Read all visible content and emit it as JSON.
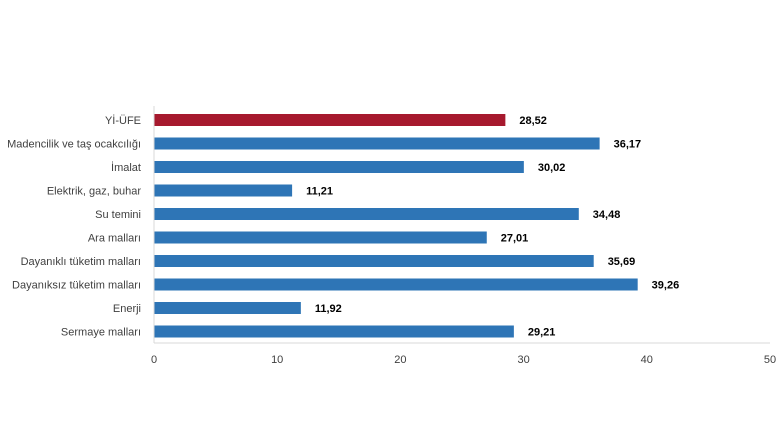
{
  "chart_data": {
    "type": "bar",
    "orientation": "horizontal",
    "categories": [
      "Yİ-ÜFE",
      "Madencilik ve taş ocakcılığı",
      "İmalat",
      "Elektrik, gaz, buhar",
      "Su temini",
      "Ara malları",
      "Dayanıklı tüketim malları",
      "Dayanıksız tüketim malları",
      "Enerji",
      "Sermaye malları"
    ],
    "values": [
      28.52,
      36.17,
      30.02,
      11.21,
      34.48,
      27.01,
      35.69,
      39.26,
      11.92,
      29.21
    ],
    "value_labels": [
      "28,52",
      "36,17",
      "30,02",
      "11,21",
      "34,48",
      "27,01",
      "35,69",
      "39,26",
      "11,92",
      "29,21"
    ],
    "highlight_index": 0,
    "colors": {
      "highlight": "#A6192E",
      "default": "#2E75B6"
    },
    "xlim": [
      0,
      50
    ],
    "xticks": [
      0,
      10,
      20,
      30,
      40,
      50
    ],
    "xtick_labels": [
      "0",
      "10",
      "20",
      "30",
      "40",
      "50"
    ],
    "title": "",
    "xlabel": "",
    "ylabel": "",
    "grid": false,
    "legend": "none"
  }
}
